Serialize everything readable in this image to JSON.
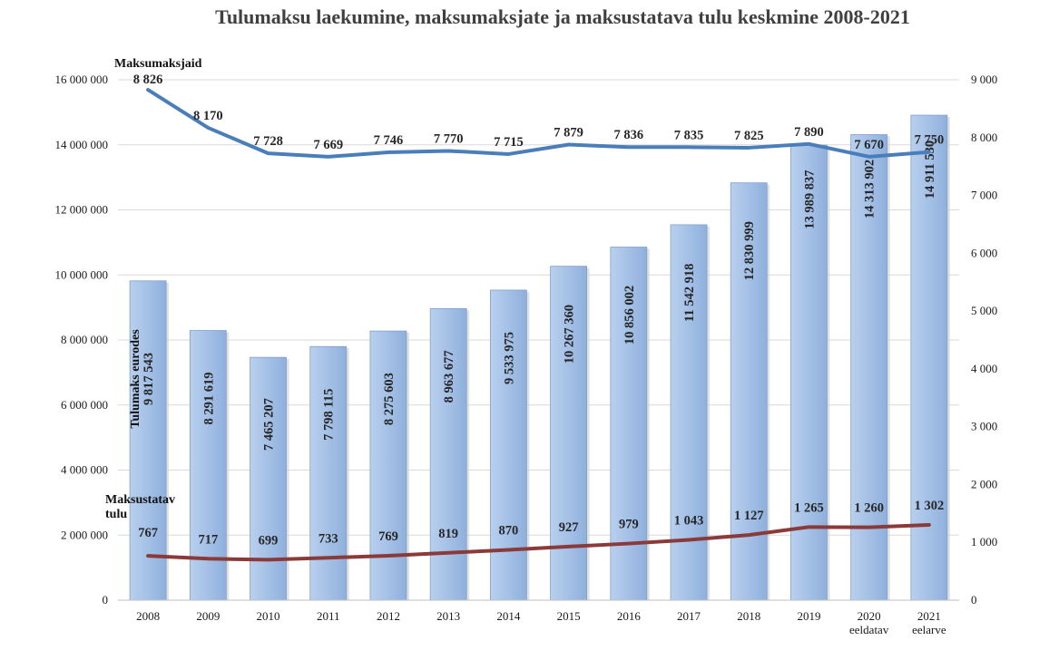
{
  "chart_data": {
    "type": "bar",
    "title": "Tulumaksu laekumine, maksumaksjate ja maksustatava tulu keskmine 2008-2021",
    "categories": [
      "2008",
      "2009",
      "2010",
      "2011",
      "2012",
      "2013",
      "2014",
      "2015",
      "2016",
      "2017",
      "2018",
      "2019",
      "2020",
      "2021"
    ],
    "category_sublabels": [
      "",
      "",
      "",
      "",
      "",
      "",
      "",
      "",
      "",
      "",
      "",
      "",
      "eeldatav",
      "eelarve"
    ],
    "y_left": {
      "ylim": [
        0,
        16000000
      ],
      "ticks": [
        0,
        2000000,
        4000000,
        6000000,
        8000000,
        10000000,
        12000000,
        14000000,
        16000000
      ],
      "tick_labels": [
        "0",
        "2 000 000",
        "4 000 000",
        "6 000 000",
        "8 000 000",
        "10 000 000",
        "12 000 000",
        "14 000 000",
        "16 000 000"
      ]
    },
    "y_right": {
      "ylim": [
        0,
        9000
      ],
      "ticks": [
        0,
        1000,
        2000,
        3000,
        4000,
        5000,
        6000,
        7000,
        8000,
        9000
      ],
      "tick_labels": [
        "0",
        "1 000",
        "2 000",
        "3 000",
        "4 000",
        "5 000",
        "6 000",
        "7 000",
        "8 000",
        "9 000"
      ]
    },
    "grid": true,
    "series": [
      {
        "name": "Tulumaks eurodes",
        "type": "bar",
        "axis": "left",
        "color": "#a9c4e8",
        "values": [
          9817543,
          8291619,
          7465207,
          7798115,
          8275603,
          8963677,
          9533975,
          10267360,
          10856002,
          11542918,
          12830999,
          13989837,
          14313902,
          14911530
        ],
        "labels": [
          "9 817 543",
          "8 291 619",
          "7 465 207",
          "7 798 115",
          "8 275 603",
          "8 963 677",
          "9 533 975",
          "10 267 360",
          "10 856 002",
          "11 542 918",
          "12 830 999",
          "13 989 837",
          "14 313 902",
          "14 911 530"
        ]
      },
      {
        "name": "Maksumaksjaid",
        "type": "line",
        "axis": "right",
        "color": "#4a7ebb",
        "values": [
          8826,
          8170,
          7728,
          7669,
          7746,
          7770,
          7715,
          7879,
          7836,
          7835,
          7825,
          7890,
          7670,
          7750
        ],
        "labels": [
          "8 826",
          "8 170",
          "7 728",
          "7 669",
          "7 746",
          "7 770",
          "7 715",
          "7 879",
          "7 836",
          "7 835",
          "7 825",
          "7 890",
          "7 670",
          "7 750"
        ]
      },
      {
        "name": "Maksustatav tulu",
        "type": "line",
        "axis": "right",
        "color": "#8b3a3a",
        "values": [
          767,
          717,
          699,
          733,
          769,
          819,
          870,
          927,
          979,
          1043,
          1127,
          1265,
          1260,
          1302
        ],
        "labels": [
          "767",
          "717",
          "699",
          "733",
          "769",
          "819",
          "870",
          "927",
          "979",
          "1 043",
          "1 127",
          "1 265",
          "1 260",
          "1 302"
        ]
      }
    ]
  }
}
